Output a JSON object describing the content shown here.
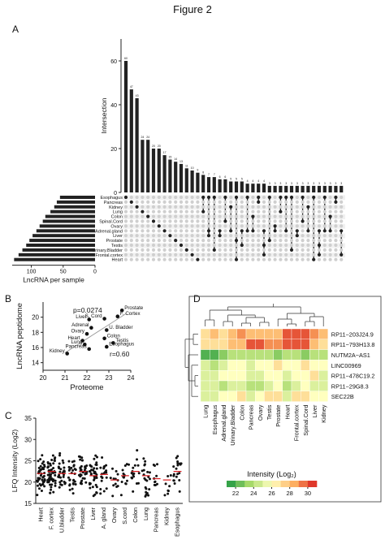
{
  "figure_title": "Figure 2",
  "panel_labels": {
    "A": "A",
    "B": "B",
    "C": "C",
    "D": "D"
  },
  "chart_data": [
    {
      "panel": "A",
      "type": "bar",
      "subtype": "upset",
      "ylabel": "Intersection",
      "ylim": [
        0,
        70
      ],
      "yticks": [
        0,
        20,
        40,
        60
      ],
      "values": [
        60,
        47,
        43,
        24,
        24,
        20,
        20,
        17,
        15,
        14,
        13,
        11,
        10,
        9,
        8,
        7,
        7,
        6,
        6,
        5,
        5,
        5,
        4,
        4,
        4,
        4,
        3,
        3,
        3,
        3,
        3,
        3,
        3,
        3,
        3,
        3,
        3,
        3,
        3,
        3
      ],
      "value_labels": [
        "60",
        "47",
        "43",
        "24",
        "24",
        "20",
        "20",
        "17",
        "15",
        "14",
        "13",
        "11",
        "10",
        "9",
        "8",
        "7",
        "7",
        "6",
        "6",
        "5",
        "5",
        "5",
        "4",
        "4",
        "4",
        "4",
        "3",
        "3",
        "3",
        "3",
        "3",
        "3",
        "3",
        "3",
        "3",
        "3",
        "3",
        "3",
        "3",
        "3"
      ],
      "sets": [
        "Esophagus",
        "Pancreas",
        "Kidney",
        "Lung",
        "Colon",
        "Spinal.Cord",
        "Ovary",
        "Adrenal.gland",
        "Liver",
        "Prostate",
        "Testis",
        "Urinary.Bladder",
        "Frontal.cortex",
        "Heart"
      ],
      "set_sizes": [
        55,
        60,
        64,
        70,
        78,
        82,
        87,
        92,
        98,
        103,
        108,
        114,
        120,
        127
      ],
      "set_size_xlabel": "LncRNA per sample",
      "set_size_ticks": [
        "100",
        "50",
        "0"
      ],
      "set_size_tick_values": [
        100,
        50,
        0
      ]
    },
    {
      "panel": "B",
      "type": "scatter",
      "xlabel": "Proteome",
      "ylabel": "LncRNA peptidome",
      "xlim": [
        20,
        24
      ],
      "ylim": [
        13,
        22
      ],
      "xticks": [
        20,
        21,
        22,
        23,
        24
      ],
      "yticks": [
        14,
        16,
        18,
        20
      ],
      "annotations": {
        "p": "p=0.0274",
        "r": "r=0.60"
      },
      "points": [
        {
          "label": "Prostate",
          "x": 23.6,
          "y": 20.9
        },
        {
          "label": "F. Cortex",
          "x": 23.4,
          "y": 20.1
        },
        {
          "label": "S. Cord",
          "x": 22.8,
          "y": 19.8
        },
        {
          "label": "Liver",
          "x": 22.1,
          "y": 19.7
        },
        {
          "label": "Adrenal",
          "x": 22.2,
          "y": 18.6
        },
        {
          "label": "U. Bladder",
          "x": 22.9,
          "y": 18.3
        },
        {
          "label": "Ovary",
          "x": 22.0,
          "y": 17.8
        },
        {
          "label": "Colon",
          "x": 22.8,
          "y": 17.2
        },
        {
          "label": "Heart",
          "x": 21.8,
          "y": 16.9
        },
        {
          "label": "Testis",
          "x": 23.2,
          "y": 16.6
        },
        {
          "label": "Lung",
          "x": 21.9,
          "y": 16.4
        },
        {
          "label": "Esophagus",
          "x": 22.9,
          "y": 16.1
        },
        {
          "label": "Pancreas",
          "x": 22.1,
          "y": 15.8
        },
        {
          "label": "Kidney",
          "x": 21.1,
          "y": 15.2
        }
      ],
      "fit_line": [
        [
          21.0,
          15.3
        ],
        [
          23.8,
          20.5
        ]
      ]
    },
    {
      "panel": "C",
      "type": "scatter",
      "subtype": "dot-strip",
      "ylabel": "LFQ Intensity (Log2)",
      "ylim": [
        15,
        35
      ],
      "yticks": [
        15,
        20,
        25,
        30,
        35
      ],
      "categories": [
        "Heart",
        "F. cortex",
        "U.bladder",
        "Testis",
        "Prostate",
        "Liver",
        "A. gland",
        "Ovary",
        "S.cord",
        "Colon",
        "Lung",
        "Pancreas",
        "Kidney",
        "Esophagus"
      ],
      "medians": [
        22.0,
        22.5,
        22.0,
        22.0,
        22.5,
        21.5,
        21.8,
        20.5,
        21.5,
        22.5,
        21.5,
        20.8,
        20.5,
        22.5
      ],
      "spreads": [
        2.3,
        2.5,
        2.2,
        2.2,
        2.2,
        2.5,
        2.2,
        2.0,
        2.0,
        2.4,
        2.5,
        2.0,
        2.3,
        2.4
      ],
      "point_counts": [
        48,
        55,
        30,
        28,
        34,
        38,
        22,
        12,
        14,
        16,
        22,
        10,
        8,
        20
      ]
    },
    {
      "panel": "D",
      "type": "heatmap",
      "columns": [
        "Lung",
        "Esophagus",
        "Adrenal.gland",
        "Urinary.Bladder",
        "Colon",
        "Pancreas",
        "Ovary",
        "Testis",
        "Prostate",
        "Heart",
        "Frontal.cortex",
        "Spinal.Cord",
        "Liver",
        "Kidney"
      ],
      "rows": [
        "RP11−203J24.9",
        "RP11−793H13.8",
        "NUTM2A−AS1",
        "LINC00969",
        "RP11−478C19.2",
        "RP11−29G8.3",
        "SEC22B"
      ],
      "values": [
        [
          27,
          28,
          27,
          28,
          29,
          28,
          28,
          28,
          28,
          30,
          30,
          30,
          29,
          28
        ],
        [
          27,
          27,
          27,
          28,
          28,
          30,
          30,
          29,
          29,
          30,
          30,
          30,
          28,
          27
        ],
        [
          22,
          22,
          23,
          24,
          24,
          24,
          24,
          24,
          23,
          24,
          24,
          23,
          24,
          24
        ],
        [
          25,
          24,
          25,
          26,
          26,
          25,
          26,
          26,
          27,
          26,
          26,
          27,
          26,
          26
        ],
        [
          25,
          25,
          26,
          26,
          26,
          25,
          25,
          26,
          26,
          25,
          26,
          26,
          27,
          25
        ],
        [
          25,
          25,
          24,
          25,
          25,
          24,
          24,
          25,
          26,
          24,
          25,
          26,
          25,
          25
        ],
        [
          25,
          25,
          26,
          26,
          27,
          25,
          26,
          27,
          27,
          25,
          27,
          27,
          26,
          26
        ]
      ],
      "colorbar_label": "Intensity (Log₂)",
      "colorbar_ticks": [
        "22",
        "24",
        "26",
        "28",
        "30"
      ],
      "colorbar_values": [
        22,
        24,
        26,
        28,
        30
      ],
      "colorscale": [
        "#1a9641",
        "#a6d96a",
        "#ffffbf",
        "#fdae61",
        "#d7191c"
      ],
      "value_range": [
        21,
        31
      ]
    }
  ]
}
